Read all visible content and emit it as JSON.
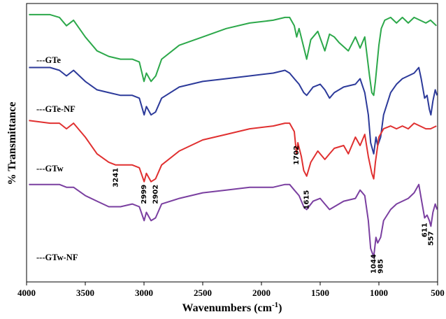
{
  "chart_data": {
    "type": "line",
    "xlabel": "Wavenumbers (cm",
    "xlabel_sup": "-1",
    "xlabel_tail": ")",
    "ylabel": "% Transmittance",
    "xlim": [
      4000,
      500
    ],
    "x_reversed": true,
    "xticks": [
      4000,
      3500,
      3000,
      2500,
      2000,
      1500,
      1000,
      500
    ],
    "xtick_labels": [
      "4000",
      "3500",
      "3000",
      "2500",
      "2000",
      "1500",
      "1000",
      "500"
    ],
    "ylim": [
      0,
      100
    ],
    "y_ticks_shown": false,
    "series": [
      {
        "name": "---GTe",
        "color": "#2ca84a",
        "points": [
          [
            3980,
            96
          ],
          [
            3800,
            96
          ],
          [
            3720,
            95
          ],
          [
            3660,
            92
          ],
          [
            3600,
            94
          ],
          [
            3500,
            88
          ],
          [
            3400,
            83
          ],
          [
            3300,
            81
          ],
          [
            3200,
            80
          ],
          [
            3100,
            80
          ],
          [
            3040,
            79
          ],
          [
            3000,
            72
          ],
          [
            2980,
            75
          ],
          [
            2940,
            72
          ],
          [
            2900,
            74
          ],
          [
            2850,
            80
          ],
          [
            2700,
            85
          ],
          [
            2500,
            88
          ],
          [
            2300,
            91
          ],
          [
            2100,
            93
          ],
          [
            1900,
            94
          ],
          [
            1800,
            95
          ],
          [
            1760,
            95
          ],
          [
            1720,
            92
          ],
          [
            1700,
            88
          ],
          [
            1680,
            91
          ],
          [
            1650,
            86
          ],
          [
            1615,
            80
          ],
          [
            1580,
            87
          ],
          [
            1520,
            90
          ],
          [
            1460,
            83
          ],
          [
            1420,
            89
          ],
          [
            1380,
            88
          ],
          [
            1340,
            86
          ],
          [
            1260,
            83
          ],
          [
            1200,
            88
          ],
          [
            1160,
            84
          ],
          [
            1120,
            88
          ],
          [
            1080,
            74
          ],
          [
            1060,
            68
          ],
          [
            1044,
            67
          ],
          [
            1030,
            72
          ],
          [
            1000,
            85
          ],
          [
            980,
            91
          ],
          [
            950,
            94
          ],
          [
            900,
            95
          ],
          [
            850,
            93
          ],
          [
            800,
            95
          ],
          [
            750,
            93
          ],
          [
            700,
            95
          ],
          [
            650,
            94
          ],
          [
            600,
            93
          ],
          [
            560,
            94
          ],
          [
            510,
            92
          ]
        ]
      },
      {
        "name": "---GTe-NF",
        "color": "#2c3a9a",
        "points": [
          [
            3980,
            77
          ],
          [
            3800,
            77
          ],
          [
            3720,
            76
          ],
          [
            3660,
            74
          ],
          [
            3600,
            76
          ],
          [
            3500,
            72
          ],
          [
            3400,
            69
          ],
          [
            3300,
            68
          ],
          [
            3200,
            67
          ],
          [
            3100,
            67
          ],
          [
            3040,
            66
          ],
          [
            2999,
            60
          ],
          [
            2980,
            63
          ],
          [
            2940,
            60
          ],
          [
            2902,
            61
          ],
          [
            2850,
            66
          ],
          [
            2700,
            70
          ],
          [
            2500,
            72
          ],
          [
            2300,
            73
          ],
          [
            2100,
            74
          ],
          [
            1900,
            75
          ],
          [
            1800,
            76
          ],
          [
            1760,
            75
          ],
          [
            1720,
            73
          ],
          [
            1680,
            71
          ],
          [
            1640,
            68
          ],
          [
            1615,
            67
          ],
          [
            1560,
            70
          ],
          [
            1500,
            71
          ],
          [
            1460,
            69
          ],
          [
            1420,
            66
          ],
          [
            1380,
            68
          ],
          [
            1300,
            70
          ],
          [
            1200,
            71
          ],
          [
            1160,
            73
          ],
          [
            1120,
            68
          ],
          [
            1090,
            60
          ],
          [
            1070,
            50
          ],
          [
            1044,
            46
          ],
          [
            1025,
            52
          ],
          [
            1010,
            49
          ],
          [
            985,
            52
          ],
          [
            960,
            60
          ],
          [
            900,
            68
          ],
          [
            850,
            71
          ],
          [
            800,
            73
          ],
          [
            750,
            74
          ],
          [
            700,
            75
          ],
          [
            660,
            77
          ],
          [
            640,
            73
          ],
          [
            611,
            66
          ],
          [
            590,
            67
          ],
          [
            570,
            62
          ],
          [
            557,
            60
          ],
          [
            540,
            65
          ],
          [
            520,
            69
          ],
          [
            505,
            67
          ]
        ]
      },
      {
        "name": "---GTw",
        "color": "#e03030",
        "points": [
          [
            3980,
            58
          ],
          [
            3800,
            57
          ],
          [
            3720,
            57
          ],
          [
            3660,
            55
          ],
          [
            3600,
            57
          ],
          [
            3500,
            52
          ],
          [
            3400,
            46
          ],
          [
            3300,
            43
          ],
          [
            3241,
            42
          ],
          [
            3150,
            42
          ],
          [
            3100,
            42
          ],
          [
            3040,
            41
          ],
          [
            2999,
            36
          ],
          [
            2980,
            39
          ],
          [
            2940,
            36
          ],
          [
            2902,
            37
          ],
          [
            2850,
            42
          ],
          [
            2700,
            47
          ],
          [
            2500,
            51
          ],
          [
            2300,
            53
          ],
          [
            2100,
            55
          ],
          [
            1900,
            56
          ],
          [
            1800,
            57
          ],
          [
            1760,
            57
          ],
          [
            1720,
            54
          ],
          [
            1702,
            46
          ],
          [
            1690,
            50
          ],
          [
            1660,
            45
          ],
          [
            1640,
            40
          ],
          [
            1615,
            38
          ],
          [
            1580,
            43
          ],
          [
            1520,
            47
          ],
          [
            1460,
            44
          ],
          [
            1420,
            46
          ],
          [
            1380,
            48
          ],
          [
            1300,
            49
          ],
          [
            1260,
            46
          ],
          [
            1200,
            52
          ],
          [
            1160,
            49
          ],
          [
            1120,
            53
          ],
          [
            1090,
            45
          ],
          [
            1060,
            39
          ],
          [
            1044,
            37
          ],
          [
            1030,
            43
          ],
          [
            1000,
            52
          ],
          [
            960,
            55
          ],
          [
            900,
            56
          ],
          [
            850,
            55
          ],
          [
            800,
            56
          ],
          [
            750,
            55
          ],
          [
            700,
            57
          ],
          [
            650,
            56
          ],
          [
            600,
            55
          ],
          [
            560,
            55
          ],
          [
            510,
            56
          ]
        ]
      },
      {
        "name": "---GTw-NF",
        "color": "#7a3fa0",
        "points": [
          [
            3980,
            35
          ],
          [
            3800,
            35
          ],
          [
            3720,
            35
          ],
          [
            3660,
            34
          ],
          [
            3600,
            34
          ],
          [
            3500,
            31
          ],
          [
            3400,
            29
          ],
          [
            3300,
            27
          ],
          [
            3200,
            27
          ],
          [
            3100,
            28
          ],
          [
            3040,
            27
          ],
          [
            2999,
            22
          ],
          [
            2980,
            25
          ],
          [
            2940,
            22
          ],
          [
            2902,
            23
          ],
          [
            2850,
            28
          ],
          [
            2700,
            30
          ],
          [
            2500,
            32
          ],
          [
            2300,
            33
          ],
          [
            2100,
            34
          ],
          [
            1900,
            34
          ],
          [
            1800,
            35
          ],
          [
            1760,
            35
          ],
          [
            1720,
            33
          ],
          [
            1680,
            31
          ],
          [
            1640,
            27
          ],
          [
            1615,
            26
          ],
          [
            1560,
            29
          ],
          [
            1500,
            30
          ],
          [
            1460,
            28
          ],
          [
            1420,
            26
          ],
          [
            1380,
            27
          ],
          [
            1300,
            29
          ],
          [
            1200,
            30
          ],
          [
            1160,
            33
          ],
          [
            1120,
            31
          ],
          [
            1090,
            22
          ],
          [
            1070,
            12
          ],
          [
            1044,
            9
          ],
          [
            1025,
            16
          ],
          [
            1010,
            14
          ],
          [
            985,
            16
          ],
          [
            960,
            22
          ],
          [
            900,
            26
          ],
          [
            850,
            28
          ],
          [
            800,
            29
          ],
          [
            750,
            30
          ],
          [
            700,
            32
          ],
          [
            660,
            35
          ],
          [
            640,
            30
          ],
          [
            611,
            23
          ],
          [
            590,
            24
          ],
          [
            570,
            22
          ],
          [
            557,
            20
          ],
          [
            540,
            25
          ],
          [
            520,
            28
          ],
          [
            505,
            26
          ]
        ]
      }
    ],
    "series_labels": [
      "---GTe",
      "---GTe-NF",
      "---GTw",
      "---GTw-NF"
    ],
    "annotations": [
      "3241",
      "2999",
      "2902",
      "1702",
      "1615",
      "1044",
      "985",
      "611",
      "557"
    ],
    "annotation_positions": [
      [
        3241,
        34
      ],
      [
        2999,
        28
      ],
      [
        2902,
        28
      ],
      [
        1702,
        42
      ],
      [
        1615,
        26
      ],
      [
        1044,
        3
      ],
      [
        985,
        3
      ],
      [
        611,
        16
      ],
      [
        557,
        13
      ]
    ]
  }
}
